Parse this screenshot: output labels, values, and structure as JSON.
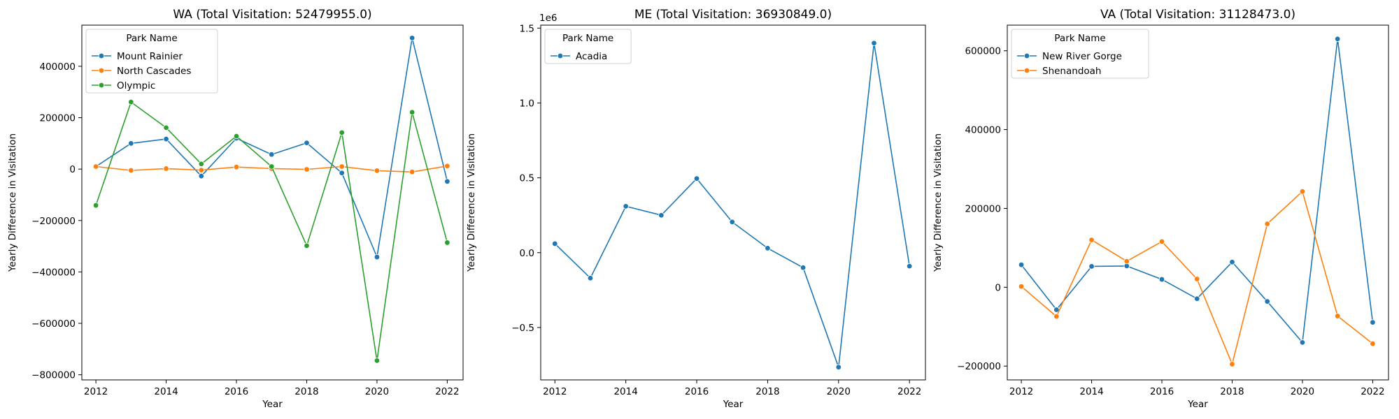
{
  "chart_data": [
    {
      "type": "line",
      "title": "WA (Total Visitation: 52479955.0)",
      "xlabel": "Year",
      "ylabel": "Yearly Difference in Visitation",
      "legend_title": "Park Name",
      "legend_position": "top-left",
      "x": [
        2012,
        2013,
        2014,
        2015,
        2016,
        2017,
        2018,
        2019,
        2020,
        2021,
        2022
      ],
      "xticks": [
        2012,
        2014,
        2016,
        2018,
        2020,
        2022
      ],
      "xlim": [
        2011.6,
        2022.45
      ],
      "ylim": [
        -820000,
        560000
      ],
      "yticks": [
        -800000,
        -600000,
        -400000,
        -200000,
        0,
        200000,
        400000
      ],
      "ytick_labels": [
        "−800000",
        "−600000",
        "−400000",
        "−200000",
        "0",
        "200000",
        "400000"
      ],
      "offset_text": "",
      "series": [
        {
          "name": "Mount Rainier",
          "color": "#1f77b4",
          "values": [
            10000,
            100000,
            117000,
            -27000,
            120000,
            57000,
            102000,
            -15000,
            -342000,
            510000,
            -48000
          ]
        },
        {
          "name": "North Cascades",
          "color": "#ff7f0e",
          "values": [
            10000,
            -5000,
            2000,
            -4000,
            8000,
            2000,
            -1000,
            10000,
            -6000,
            -11000,
            12000
          ]
        },
        {
          "name": "Olympic",
          "color": "#2ca02c",
          "values": [
            -141000,
            261000,
            161000,
            20000,
            128000,
            10000,
            -298000,
            142000,
            -745000,
            221000,
            -286000
          ]
        }
      ]
    },
    {
      "type": "line",
      "title": "ME (Total Visitation: 36930849.0)",
      "xlabel": "Year",
      "ylabel": "Yearly Difference in Visitation",
      "legend_title": "Park Name",
      "legend_position": "top-left",
      "x": [
        2012,
        2013,
        2014,
        2015,
        2016,
        2017,
        2018,
        2019,
        2020,
        2021,
        2022
      ],
      "xticks": [
        2012,
        2014,
        2016,
        2018,
        2020,
        2022
      ],
      "xlim": [
        2011.6,
        2022.45
      ],
      "ylim": [
        -0.85,
        1.52
      ],
      "yticks": [
        -0.5,
        0.0,
        0.5,
        1.0,
        1.5
      ],
      "ytick_labels": [
        "−0.5",
        "0.0",
        "0.5",
        "1.0",
        "1.5"
      ],
      "offset_text": "1e6",
      "series": [
        {
          "name": "Acadia",
          "color": "#1f77b4",
          "values": [
            0.06,
            -0.17,
            0.31,
            0.25,
            0.495,
            0.205,
            0.03,
            -0.1,
            -0.765,
            1.4,
            -0.09
          ]
        }
      ]
    },
    {
      "type": "line",
      "title": "VA (Total Visitation: 31128473.0)",
      "xlabel": "Year",
      "ylabel": "Yearly Difference in Visitation",
      "legend_title": "Park Name",
      "legend_position": "top-left",
      "x": [
        2012,
        2013,
        2014,
        2015,
        2016,
        2017,
        2018,
        2019,
        2020,
        2021,
        2022
      ],
      "xticks": [
        2012,
        2014,
        2016,
        2018,
        2020,
        2022
      ],
      "xlim": [
        2011.6,
        2022.45
      ],
      "ylim": [
        -235000,
        665000
      ],
      "yticks": [
        -200000,
        0,
        200000,
        400000,
        600000
      ],
      "ytick_labels": [
        "−200000",
        "0",
        "200000",
        "400000",
        "600000"
      ],
      "offset_text": "",
      "series": [
        {
          "name": "New River Gorge",
          "color": "#1f77b4",
          "values": [
            57000,
            -57000,
            53000,
            54000,
            20000,
            -29000,
            64000,
            -36000,
            -140000,
            630000,
            -89000
          ]
        },
        {
          "name": "Shenandoah",
          "color": "#ff7f0e",
          "values": [
            2000,
            -74000,
            120000,
            66000,
            116000,
            21000,
            -195000,
            161000,
            243000,
            -73000,
            -143000
          ]
        }
      ]
    }
  ]
}
